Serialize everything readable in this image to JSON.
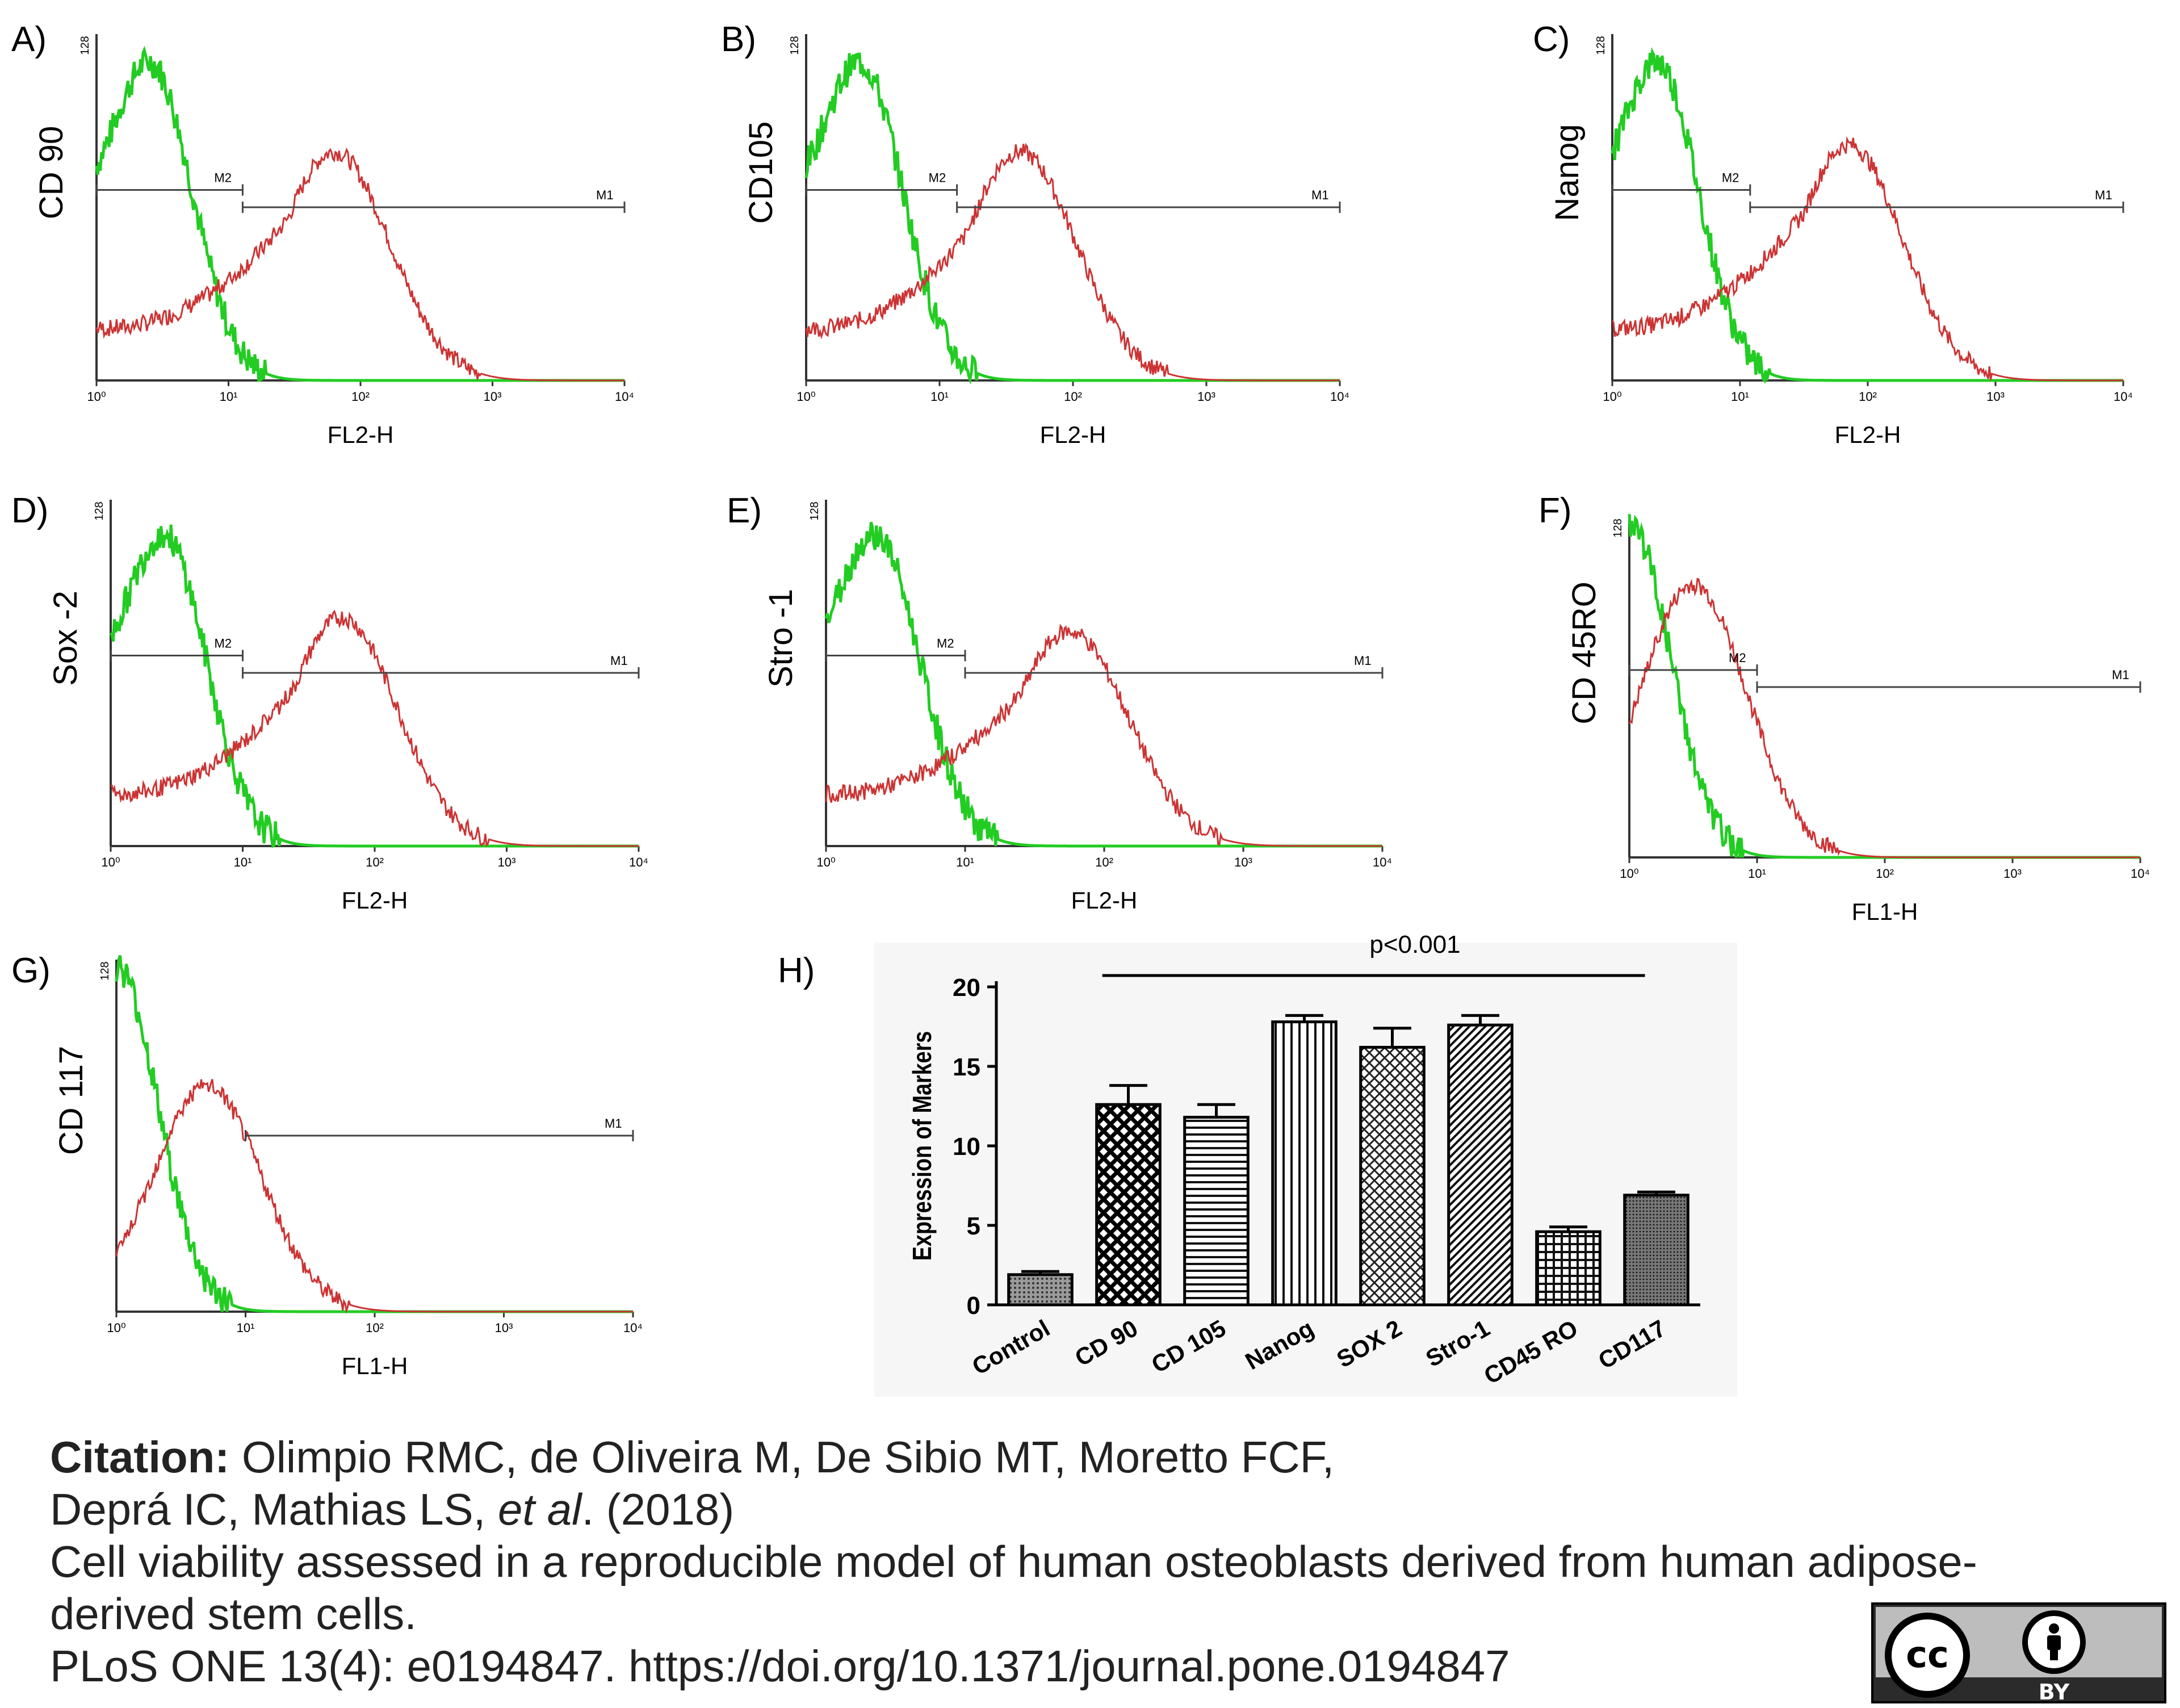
{
  "panels": [
    {
      "id": "A",
      "panel_label": "A)",
      "ylabel": "CD 90",
      "xlabel": "FL2-H",
      "ymax_label": "128",
      "x_ticks": [
        "10⁰",
        "10¹",
        "10²",
        "10³",
        "10⁴"
      ],
      "gates": [
        {
          "label": "M2",
          "from": 1.0,
          "to": 12.8
        },
        {
          "label": "M1",
          "from": 12.8,
          "to": 10000
        }
      ],
      "green_peak": {
        "log_x": 0.4,
        "height": 0.92
      },
      "red_peak": {
        "log_x": 1.8,
        "height": 0.66
      }
    },
    {
      "id": "B",
      "panel_label": "B)",
      "ylabel": "CD105",
      "xlabel": "FL2-H",
      "ymax_label": "128",
      "x_ticks": [
        "10⁰",
        "10¹",
        "10²",
        "10³",
        "10⁴"
      ],
      "gates": [
        {
          "label": "M2",
          "from": 1.0,
          "to": 13.5
        },
        {
          "label": "M1",
          "from": 13.5,
          "to": 10000
        }
      ],
      "green_peak": {
        "log_x": 0.4,
        "height": 0.92
      },
      "red_peak": {
        "log_x": 1.6,
        "height": 0.66
      }
    },
    {
      "id": "C",
      "panel_label": "C)",
      "ylabel": "Nanog",
      "xlabel": "FL2-H",
      "ymax_label": "128",
      "x_ticks": [
        "10⁰",
        "10¹",
        "10²",
        "10³",
        "10⁴"
      ],
      "gates": [
        {
          "label": "M2",
          "from": 1.0,
          "to": 12.0
        },
        {
          "label": "M1",
          "from": 12.0,
          "to": 10000
        }
      ],
      "green_peak": {
        "log_x": 0.35,
        "height": 0.92
      },
      "red_peak": {
        "log_x": 1.85,
        "height": 0.68
      }
    },
    {
      "id": "D",
      "panel_label": "D)",
      "ylabel": "Sox -2",
      "xlabel": "FL2-H",
      "ymax_label": "128",
      "x_ticks": [
        "10⁰",
        "10¹",
        "10²",
        "10³",
        "10⁴"
      ],
      "gates": [
        {
          "label": "M2",
          "from": 1.0,
          "to": 10.0
        },
        {
          "label": "M1",
          "from": 10.0,
          "to": 10000
        }
      ],
      "green_peak": {
        "log_x": 0.4,
        "height": 0.9
      },
      "red_peak": {
        "log_x": 1.75,
        "height": 0.66
      }
    },
    {
      "id": "E",
      "panel_label": "E)",
      "ylabel": "Stro -1",
      "xlabel": "FL2-H",
      "ymax_label": "128",
      "x_ticks": [
        "10⁰",
        "10¹",
        "10²",
        "10³",
        "10⁴"
      ],
      "gates": [
        {
          "label": "M2",
          "from": 1.0,
          "to": 10.0
        },
        {
          "label": "M1",
          "from": 10.0,
          "to": 10000
        }
      ],
      "green_peak": {
        "log_x": 0.35,
        "height": 0.9
      },
      "red_peak": {
        "log_x": 1.75,
        "height": 0.62
      }
    },
    {
      "id": "F",
      "panel_label": "F)",
      "ylabel": "CD 45RO",
      "xlabel": "FL1-H",
      "ymax_label": "128",
      "x_ticks": [
        "10⁰",
        "10¹",
        "10²",
        "10³",
        "10⁴"
      ],
      "gates": [
        {
          "label": "M2",
          "from": 1.0,
          "to": 10.0
        },
        {
          "label": "M1",
          "from": 10.0,
          "to": 10000
        }
      ],
      "green_peak": {
        "log_x": 0.0,
        "height": 0.98
      },
      "red_peak": {
        "log_x": 0.5,
        "height": 0.8
      }
    },
    {
      "id": "G",
      "panel_label": "G)",
      "ylabel": "CD 117",
      "xlabel": "FL1-H",
      "ymax_label": "128",
      "x_ticks": [
        "10⁰",
        "10¹",
        "10²",
        "10³",
        "10⁴"
      ],
      "gates": [
        {
          "label": "M1",
          "from": 10.0,
          "to": 10000
        }
      ],
      "green_peak": {
        "log_x": 0.0,
        "height": 0.98
      },
      "red_peak": {
        "log_x": 0.7,
        "height": 0.64
      }
    }
  ],
  "bar_panel": {
    "panel_label": "H)"
  },
  "chart_data": {
    "type": "bar",
    "categories": [
      "Control",
      "CD 90",
      "CD 105",
      "Nanog",
      "SOX 2",
      "Stro-1",
      "CD45 RO",
      "CD117"
    ],
    "values": [
      1.9,
      12.6,
      11.8,
      17.8,
      16.2,
      17.6,
      4.6,
      6.9
    ],
    "errors": [
      0.2,
      1.2,
      0.8,
      0.4,
      1.2,
      0.6,
      0.3,
      0.2
    ],
    "patterns": [
      "dense-dot",
      "crosshatch",
      "horizontal",
      "vertical",
      "diagonal-cross",
      "diagonal",
      "grid",
      "fine-dot"
    ],
    "title": "",
    "xlabel": "",
    "ylabel": "Expression of Markers",
    "ylim": [
      0,
      20
    ],
    "yticks": [
      0,
      5,
      10,
      15,
      20
    ],
    "annotation": "p<0.001",
    "annotation_span": [
      "CD 90",
      "CD117"
    ]
  },
  "citation": {
    "label": "Citation:",
    "line1": " Olimpio RMC, de Oliveira M, De Sibio MT, Moretto FCF,",
    "line2_a": "Deprá IC, Mathias LS, ",
    "line2_em": "et al",
    "line2_b": ". (2018)",
    "line3": "Cell viability assessed in a reproducible model of human osteoblasts derived from human adipose-",
    "line4": "derived stem cells.",
    "line5": "PLoS ONE 13(4): e0194847. https://doi.org/10.1371/journal.pone.0194847"
  },
  "license": {
    "cc": "cc",
    "by": "BY"
  },
  "colors": {
    "green": "#22cc22",
    "red": "#cc3333",
    "axis": "#333333",
    "gate": "#444444"
  }
}
